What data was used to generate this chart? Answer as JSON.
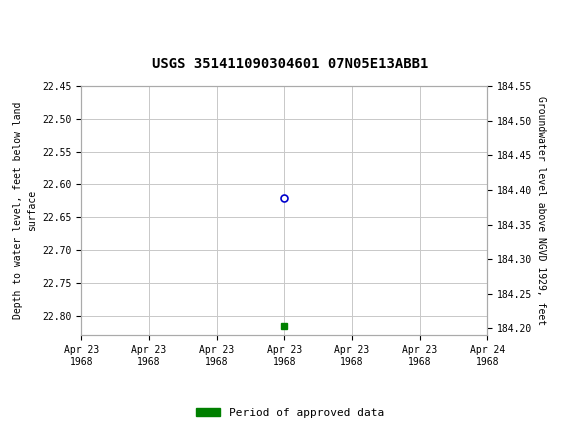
{
  "title": "USGS 351411090304601 07N05E13ABB1",
  "left_ylabel_line1": "Depth to water level, feet below land",
  "left_ylabel_line2": "surface",
  "right_ylabel": "Groundwater level above NGVD 1929, feet",
  "ylim_left_top": 22.45,
  "ylim_left_bottom": 22.83,
  "ylim_right_top": 184.55,
  "ylim_right_bottom": 184.19,
  "left_yticks": [
    22.45,
    22.5,
    22.55,
    22.6,
    22.65,
    22.7,
    22.75,
    22.8
  ],
  "right_ytick_labels": [
    "184.55",
    "184.50",
    "184.45",
    "184.40",
    "184.35",
    "184.30",
    "184.25",
    "184.20"
  ],
  "data_point_x": 12.0,
  "data_point_y": 22.62,
  "green_point_x": 12.0,
  "green_point_y": 22.815,
  "xtick_positions": [
    0,
    4,
    8,
    12,
    16,
    20,
    24
  ],
  "xtick_labels": [
    "Apr 23\n1968",
    "Apr 23\n1968",
    "Apr 23\n1968",
    "Apr 23\n1968",
    "Apr 23\n1968",
    "Apr 23\n1968",
    "Apr 24\n1968"
  ],
  "background_color": "#ffffff",
  "header_color": "#006633",
  "grid_color": "#c8c8c8",
  "data_point_color": "#0000cc",
  "green_point_color": "#008000",
  "legend_label": "Period of approved data",
  "title_fontsize": 10,
  "tick_fontsize": 7,
  "label_fontsize": 7
}
